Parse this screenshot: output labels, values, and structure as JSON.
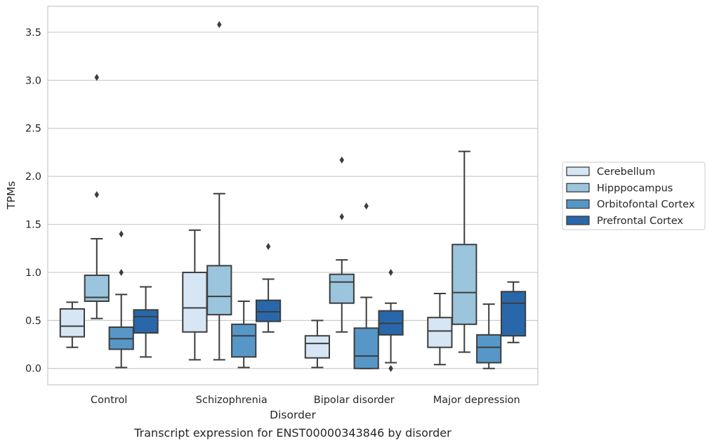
{
  "chart_data": {
    "type": "box",
    "title": "",
    "caption": "Transcript expression for ENST00000343846 by disorder",
    "xlabel": "Disorder",
    "ylabel": "TPMs",
    "ylim": [
      -0.17,
      3.77
    ],
    "yticks": [
      0.0,
      0.5,
      1.0,
      1.5,
      2.0,
      2.5,
      3.0,
      3.5
    ],
    "ytick_labels": [
      "0.0",
      "0.5",
      "1.0",
      "1.5",
      "2.0",
      "2.5",
      "3.0",
      "3.5"
    ],
    "grid": "horizontal",
    "legend_position": "right",
    "categories": [
      "Control",
      "Schizophrenia",
      "Bipolar disorder",
      "Major depression"
    ],
    "series": [
      {
        "name": "Cerebellum",
        "color": "#d6e6f4",
        "boxes": [
          {
            "whislo": 0.22,
            "q1": 0.33,
            "med": 0.44,
            "q3": 0.62,
            "whishi": 0.69,
            "fliers": []
          },
          {
            "whislo": 0.09,
            "q1": 0.38,
            "med": 0.63,
            "q3": 1.0,
            "whishi": 1.44,
            "fliers": []
          },
          {
            "whislo": 0.01,
            "q1": 0.11,
            "med": 0.26,
            "q3": 0.34,
            "whishi": 0.5,
            "fliers": []
          },
          {
            "whislo": 0.04,
            "q1": 0.22,
            "med": 0.39,
            "q3": 0.53,
            "whishi": 0.78,
            "fliers": []
          }
        ]
      },
      {
        "name": "Hipppocampus",
        "color": "#9bc5dd",
        "boxes": [
          {
            "whislo": 0.52,
            "q1": 0.7,
            "med": 0.74,
            "q3": 0.97,
            "whishi": 1.35,
            "fliers": [
              1.81,
              3.03
            ]
          },
          {
            "whislo": 0.09,
            "q1": 0.56,
            "med": 0.75,
            "q3": 1.07,
            "whishi": 1.82,
            "fliers": [
              3.58
            ]
          },
          {
            "whislo": 0.38,
            "q1": 0.68,
            "med": 0.9,
            "q3": 0.98,
            "whishi": 1.13,
            "fliers": [
              1.58,
              2.17
            ]
          },
          {
            "whislo": 0.17,
            "q1": 0.46,
            "med": 0.79,
            "q3": 1.29,
            "whishi": 2.26,
            "fliers": []
          }
        ]
      },
      {
        "name": "Orbitofontal Cortex",
        "color": "#5697c8",
        "boxes": [
          {
            "whislo": 0.01,
            "q1": 0.2,
            "med": 0.31,
            "q3": 0.43,
            "whishi": 0.77,
            "fliers": [
              1.0,
              1.4
            ]
          },
          {
            "whislo": 0.01,
            "q1": 0.12,
            "med": 0.34,
            "q3": 0.46,
            "whishi": 0.7,
            "fliers": []
          },
          {
            "whislo": 0.0,
            "q1": 0.0,
            "med": 0.13,
            "q3": 0.42,
            "whishi": 0.74,
            "fliers": [
              1.69
            ]
          },
          {
            "whislo": 0.0,
            "q1": 0.06,
            "med": 0.22,
            "q3": 0.35,
            "whishi": 0.67,
            "fliers": []
          }
        ]
      },
      {
        "name": "Prefrontal Cortex",
        "color": "#2868aa",
        "boxes": [
          {
            "whislo": 0.12,
            "q1": 0.37,
            "med": 0.54,
            "q3": 0.61,
            "whishi": 0.85,
            "fliers": []
          },
          {
            "whislo": 0.38,
            "q1": 0.49,
            "med": 0.59,
            "q3": 0.71,
            "whishi": 0.93,
            "fliers": [
              1.27
            ]
          },
          {
            "whislo": 0.06,
            "q1": 0.35,
            "med": 0.47,
            "q3": 0.6,
            "whishi": 0.68,
            "fliers": [
              0.0,
              1.0
            ]
          },
          {
            "whislo": 0.27,
            "q1": 0.34,
            "med": 0.68,
            "q3": 0.8,
            "whishi": 0.9,
            "fliers": []
          }
        ]
      }
    ]
  }
}
